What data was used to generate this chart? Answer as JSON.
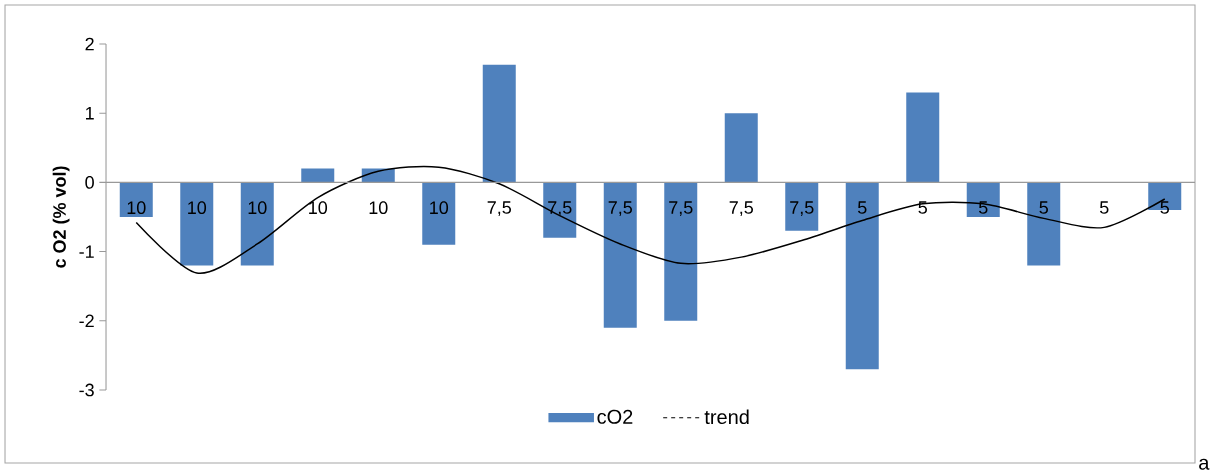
{
  "chart_data": {
    "type": "bar",
    "ylabel": "c O2 (% vol)",
    "categories": [
      "10",
      "10",
      "10",
      "10",
      "10",
      "10",
      "7,5",
      "7,5",
      "7,5",
      "7,5",
      "7,5",
      "7,5",
      "5",
      "5",
      "5",
      "5",
      "5",
      "5"
    ],
    "series": [
      {
        "name": "cO2",
        "color": "#4f81bd",
        "values": [
          -0.5,
          -1.2,
          -1.2,
          0.2,
          0.2,
          -0.9,
          1.7,
          -0.8,
          -2.1,
          -2.0,
          1.0,
          -0.7,
          -2.7,
          1.3,
          -0.5,
          -1.2,
          0,
          -0.4
        ]
      },
      {
        "name": "trend",
        "type": "line",
        "color": "#000000",
        "values": [
          -0.58,
          -1.31,
          -0.89,
          -0.22,
          0.16,
          0.22,
          -0.02,
          -0.48,
          -0.89,
          -1.17,
          -1.08,
          -0.84,
          -0.55,
          -0.31,
          -0.31,
          -0.52,
          -0.65,
          -0.24
        ]
      }
    ],
    "ylim": [
      -3,
      2
    ],
    "yticks": [
      -3,
      -2,
      -1,
      0,
      1,
      2
    ],
    "legend": "bottom",
    "annotations": [
      "a"
    ]
  }
}
